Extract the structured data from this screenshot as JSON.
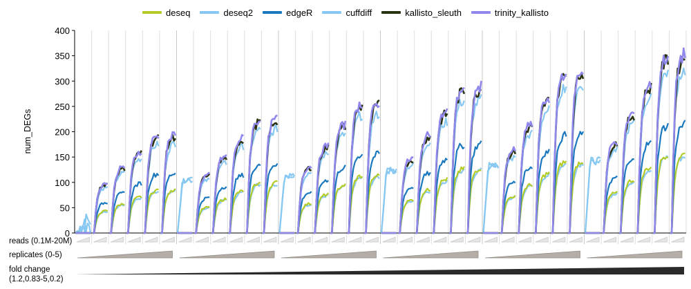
{
  "chart_data": {
    "type": "line",
    "ylabel": "num_DEGs",
    "ylim": [
      0,
      400
    ],
    "yticks": [
      "0",
      "50",
      "100",
      "150",
      "200",
      "250",
      "300",
      "350",
      "400"
    ],
    "grid": "vertical lines between panels",
    "legend_position": "top",
    "series": [
      {
        "name": "deseq",
        "color": "#b5cc28",
        "plateau": 160
      },
      {
        "name": "deseq2",
        "color": "#86c8f2",
        "plateau": 155
      },
      {
        "name": "edgeR",
        "color": "#1a78bf",
        "plateau": 220
      },
      {
        "name": "cuffdiff",
        "color": "#86c8f2",
        "plateau": 330
      },
      {
        "name": "kallisto_sleuth",
        "color": "#2a3311",
        "plateau": 355
      },
      {
        "name": "trinity_kallisto",
        "color": "#9088ec",
        "plateau": 362
      }
    ],
    "row_labels": {
      "reads": "reads (0.1M-20M)",
      "replicates": "replicates (0-5)",
      "fold_change_line1": "fold change",
      "fold_change_line2": "(1.2,0.83-5,0.2)"
    }
  },
  "legend": [
    {
      "name": "deseq",
      "color": "#b5cc28"
    },
    {
      "name": "deseq2",
      "color": "#86c8f2"
    },
    {
      "name": "edgeR",
      "color": "#1a78bf"
    },
    {
      "name": "cuffdiff",
      "color": "#86c8f2"
    },
    {
      "name": "kallisto_sleuth",
      "color": "#2a3311"
    },
    {
      "name": "trinity_kallisto",
      "color": "#9088ec"
    }
  ]
}
